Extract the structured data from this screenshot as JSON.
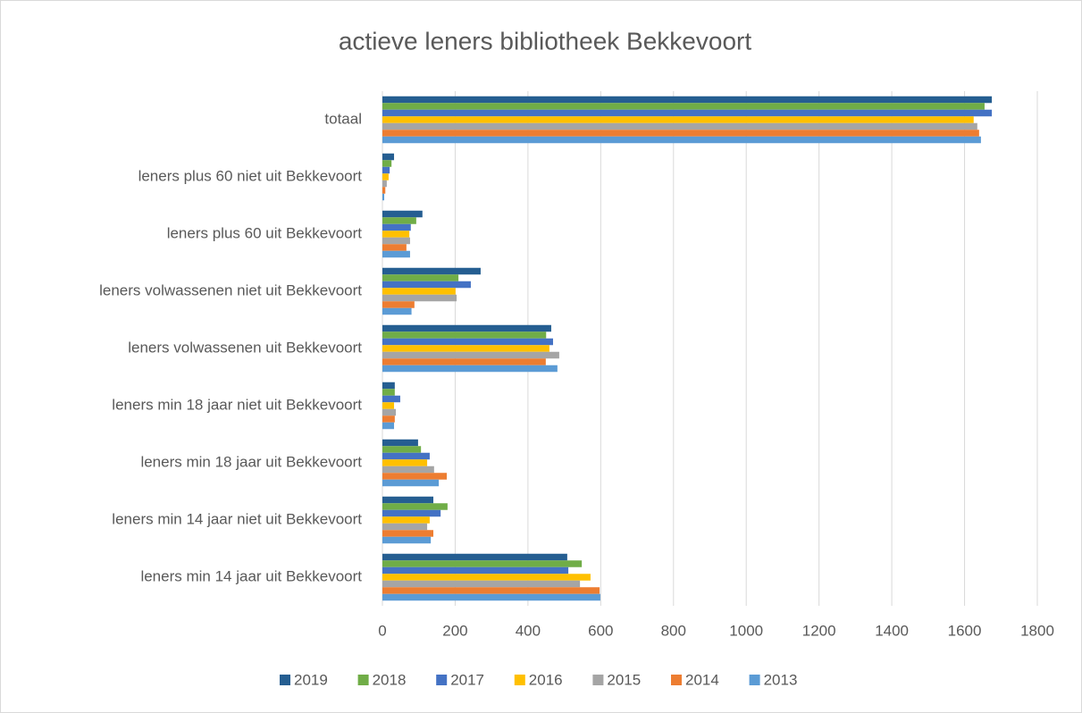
{
  "chart_data": {
    "type": "hbar",
    "title": "actieve leners bibliotheek Bekkevoort",
    "categories": [
      "totaal",
      "leners plus 60 niet uit Bekkevoort",
      "leners plus 60 uit Bekkevoort",
      "leners volwassenen niet uit Bekkevoort",
      "leners volwassenen uit Bekkevoort",
      "leners min 18 jaar niet uit Bekkevoort",
      "leners min 18 jaar uit Bekkevoort",
      "leners min 14 jaar niet uit Bekkevoort",
      "leners min 14 jaar uit Bekkevoort"
    ],
    "series": [
      {
        "name": "2019",
        "color": "#255e91",
        "values": [
          1675,
          32,
          110,
          270,
          464,
          34,
          98,
          140,
          508
        ]
      },
      {
        "name": "2018",
        "color": "#70ad47",
        "values": [
          1655,
          25,
          93,
          209,
          450,
          34,
          106,
          179,
          548
        ]
      },
      {
        "name": "2017",
        "color": "#4472c4",
        "values": [
          1675,
          20,
          78,
          243,
          469,
          49,
          130,
          160,
          511
        ]
      },
      {
        "name": "2016",
        "color": "#ffc000",
        "values": [
          1625,
          17,
          74,
          201,
          459,
          32,
          123,
          130,
          572
        ]
      },
      {
        "name": "2015",
        "color": "#a5a5a5",
        "values": [
          1635,
          12,
          76,
          204,
          486,
          37,
          142,
          123,
          543
        ]
      },
      {
        "name": "2014",
        "color": "#ed7d31",
        "values": [
          1640,
          8,
          66,
          88,
          449,
          34,
          177,
          140,
          597
        ]
      },
      {
        "name": "2013",
        "color": "#5b9bd5",
        "values": [
          1645,
          5,
          76,
          80,
          481,
          32,
          155,
          133,
          599
        ]
      }
    ],
    "xlim": [
      0,
      1800
    ],
    "xticks": [
      0,
      200,
      400,
      600,
      800,
      1000,
      1200,
      1400,
      1600,
      1800
    ],
    "grid": true,
    "legend": "bottom"
  }
}
